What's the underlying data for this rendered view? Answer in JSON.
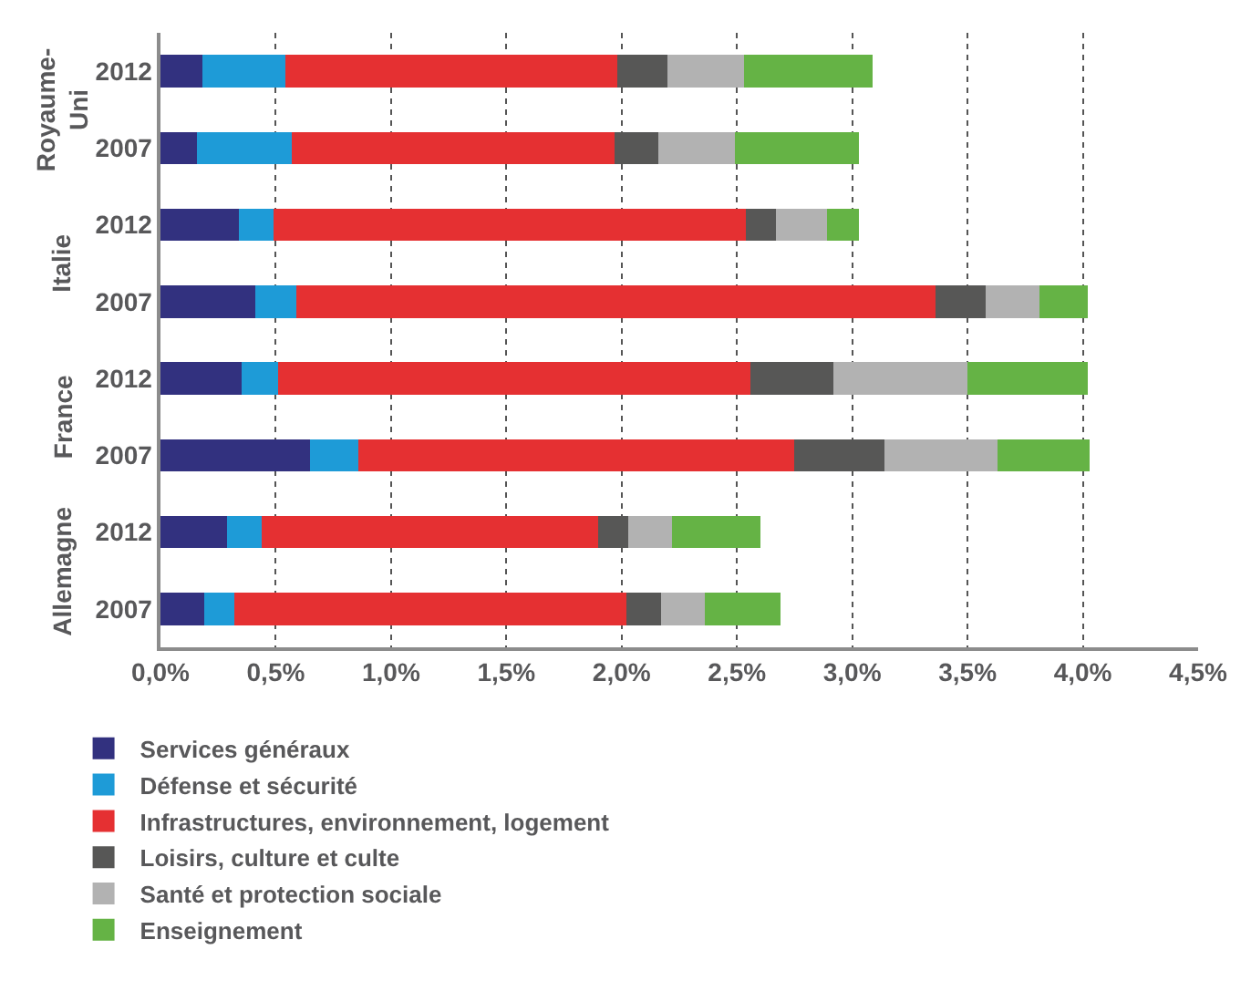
{
  "chart_data": {
    "type": "bar",
    "orientation": "horizontal",
    "stacked": true,
    "categories": [
      "2012",
      "2007",
      "2012",
      "2007",
      "2012",
      "2007",
      "2012",
      "2007"
    ],
    "annotations": [
      "Royaume-Uni",
      "Italie",
      "France",
      "Allemagne"
    ],
    "series": [
      {
        "name": "Services généraux",
        "color": "#32317f",
        "values": [
          0.18,
          0.16,
          0.34,
          0.41,
          0.35,
          0.65,
          0.29,
          0.19
        ]
      },
      {
        "name": "Défense et sécurité",
        "color": "#1e9bd7",
        "values": [
          0.36,
          0.41,
          0.15,
          0.18,
          0.16,
          0.21,
          0.15,
          0.13
        ]
      },
      {
        "name": "Infrastructures, environnement, logement",
        "color": "#e53032",
        "values": [
          1.44,
          1.4,
          2.05,
          2.77,
          2.05,
          1.89,
          1.46,
          1.7
        ]
      },
      {
        "name": "Loisirs, culture et culte",
        "color": "#575756",
        "values": [
          0.22,
          0.19,
          0.13,
          0.22,
          0.36,
          0.39,
          0.13,
          0.15
        ]
      },
      {
        "name": "Santé et protection sociale",
        "color": "#b2b2b2",
        "values": [
          0.33,
          0.33,
          0.22,
          0.23,
          0.58,
          0.49,
          0.19,
          0.19
        ]
      },
      {
        "name": "Enseignement",
        "color": "#65b345",
        "values": [
          0.56,
          0.54,
          0.14,
          0.21,
          0.52,
          0.4,
          0.38,
          0.33
        ]
      }
    ],
    "xlim": [
      0,
      4.5
    ],
    "xticks": [
      {
        "value": 0,
        "label": "0,0%"
      },
      {
        "value": 0.5,
        "label": "0,5%"
      },
      {
        "value": 1,
        "label": "1,0%"
      },
      {
        "value": 1.5,
        "label": "1,5%"
      },
      {
        "value": 2,
        "label": "2,0%"
      },
      {
        "value": 2.5,
        "label": "2,5%"
      },
      {
        "value": 3,
        "label": "3,0%"
      },
      {
        "value": 3.5,
        "label": "3,5%"
      },
      {
        "value": 4,
        "label": "4,0%"
      },
      {
        "value": 4.5,
        "label": "4,5%"
      }
    ],
    "grid": "x",
    "legend": "bottom"
  }
}
